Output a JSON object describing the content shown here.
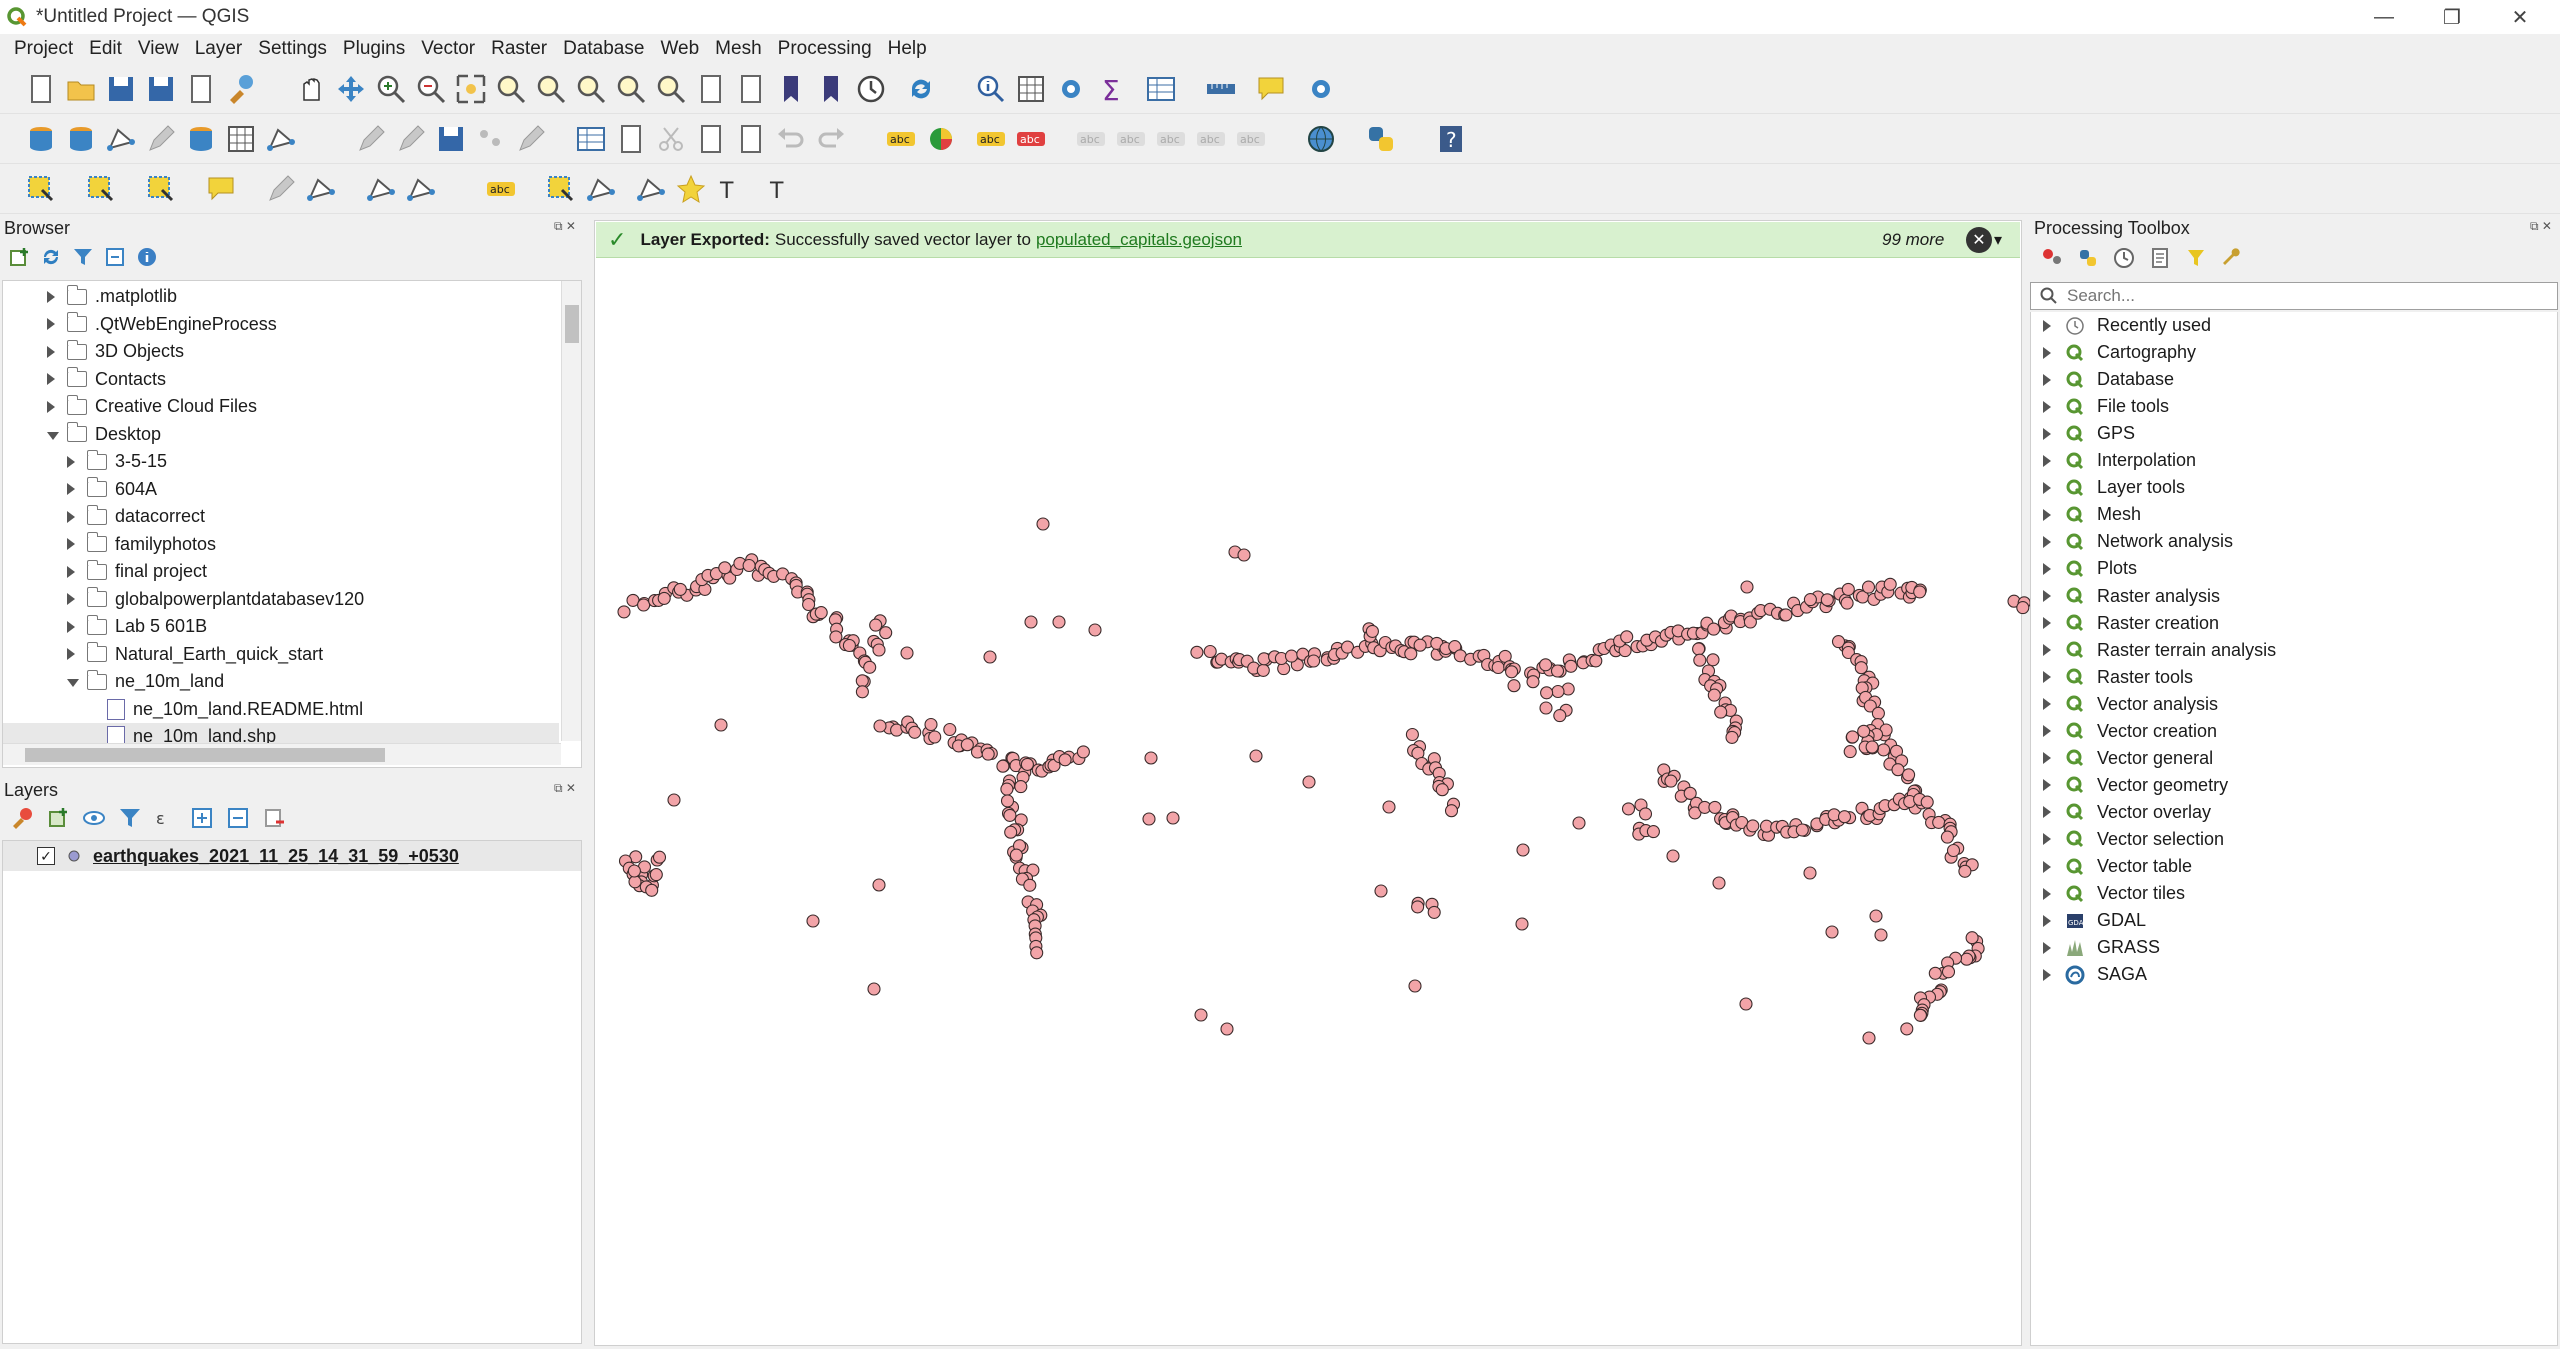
{
  "window": {
    "title": "*Untitled Project — QGIS",
    "min_glyph": "—",
    "restore_glyph": "❐",
    "close_glyph": "✕"
  },
  "menu": [
    "Project",
    "Edit",
    "View",
    "Layer",
    "Settings",
    "Plugins",
    "Vector",
    "Raster",
    "Database",
    "Web",
    "Mesh",
    "Processing",
    "Help"
  ],
  "browser": {
    "title": "Browser",
    "items": [
      {
        "label": ".matplotlib",
        "type": "folder",
        "depth": 0,
        "expanded": false
      },
      {
        "label": ".QtWebEngineProcess",
        "type": "folder",
        "depth": 0,
        "expanded": false
      },
      {
        "label": "3D Objects",
        "type": "folder",
        "depth": 0,
        "expanded": false
      },
      {
        "label": "Contacts",
        "type": "folder",
        "depth": 0,
        "expanded": false
      },
      {
        "label": "Creative Cloud Files",
        "type": "folder",
        "depth": 0,
        "expanded": false
      },
      {
        "label": "Desktop",
        "type": "folder",
        "depth": 0,
        "expanded": true
      },
      {
        "label": "3-5-15",
        "type": "folder",
        "depth": 1,
        "expanded": false
      },
      {
        "label": "604A",
        "type": "folder",
        "depth": 1,
        "expanded": false
      },
      {
        "label": "datacorrect",
        "type": "folder",
        "depth": 1,
        "expanded": false
      },
      {
        "label": "familyphotos",
        "type": "folder",
        "depth": 1,
        "expanded": false
      },
      {
        "label": "final project",
        "type": "folder",
        "depth": 1,
        "expanded": false
      },
      {
        "label": "globalpowerplantdatabasev120",
        "type": "folder",
        "depth": 1,
        "expanded": false
      },
      {
        "label": "Lab 5 601B",
        "type": "folder",
        "depth": 1,
        "expanded": false
      },
      {
        "label": "Natural_Earth_quick_start",
        "type": "folder",
        "depth": 1,
        "expanded": false
      },
      {
        "label": "ne_10m_land",
        "type": "folder",
        "depth": 1,
        "expanded": true
      },
      {
        "label": "ne_10m_land.README.html",
        "type": "file",
        "depth": 2,
        "expanded": false
      },
      {
        "label": "ne_10m_land.shp",
        "type": "file",
        "depth": 2,
        "expanded": false
      }
    ]
  },
  "layers": {
    "title": "Layers",
    "items": [
      {
        "label": "earthquakes_2021_11_25_14_31_59_+0530",
        "checked": true,
        "check_glyph": "✓"
      }
    ]
  },
  "message": {
    "title": "Layer Exported:",
    "text": "Successfully saved vector layer to",
    "link": "populated_capitals.geojson",
    "more": "99 more",
    "check_glyph": "✓",
    "close_glyph": "✕",
    "menu_glyph": "▾"
  },
  "toolbox": {
    "title": "Processing Toolbox",
    "search_placeholder": "Search...",
    "items": [
      {
        "label": "Recently used",
        "icon": "clock-icon"
      },
      {
        "label": "Cartography",
        "icon": "qgis-icon"
      },
      {
        "label": "Database",
        "icon": "qgis-icon"
      },
      {
        "label": "File tools",
        "icon": "qgis-icon"
      },
      {
        "label": "GPS",
        "icon": "qgis-icon"
      },
      {
        "label": "Interpolation",
        "icon": "qgis-icon"
      },
      {
        "label": "Layer tools",
        "icon": "qgis-icon"
      },
      {
        "label": "Mesh",
        "icon": "qgis-icon"
      },
      {
        "label": "Network analysis",
        "icon": "qgis-icon"
      },
      {
        "label": "Plots",
        "icon": "qgis-icon"
      },
      {
        "label": "Raster analysis",
        "icon": "qgis-icon"
      },
      {
        "label": "Raster creation",
        "icon": "qgis-icon"
      },
      {
        "label": "Raster terrain analysis",
        "icon": "qgis-icon"
      },
      {
        "label": "Raster tools",
        "icon": "qgis-icon"
      },
      {
        "label": "Vector analysis",
        "icon": "qgis-icon"
      },
      {
        "label": "Vector creation",
        "icon": "qgis-icon"
      },
      {
        "label": "Vector general",
        "icon": "qgis-icon"
      },
      {
        "label": "Vector geometry",
        "icon": "qgis-icon"
      },
      {
        "label": "Vector overlay",
        "icon": "qgis-icon"
      },
      {
        "label": "Vector selection",
        "icon": "qgis-icon"
      },
      {
        "label": "Vector table",
        "icon": "qgis-icon"
      },
      {
        "label": "Vector tiles",
        "icon": "qgis-icon"
      },
      {
        "label": "GDAL",
        "icon": "gdal-icon"
      },
      {
        "label": "GRASS",
        "icon": "grass-icon"
      },
      {
        "label": "SAGA",
        "icon": "saga-icon"
      }
    ]
  },
  "map": {
    "point_fill": "#f2a4a8",
    "point_stroke": "#3a2a2a"
  }
}
